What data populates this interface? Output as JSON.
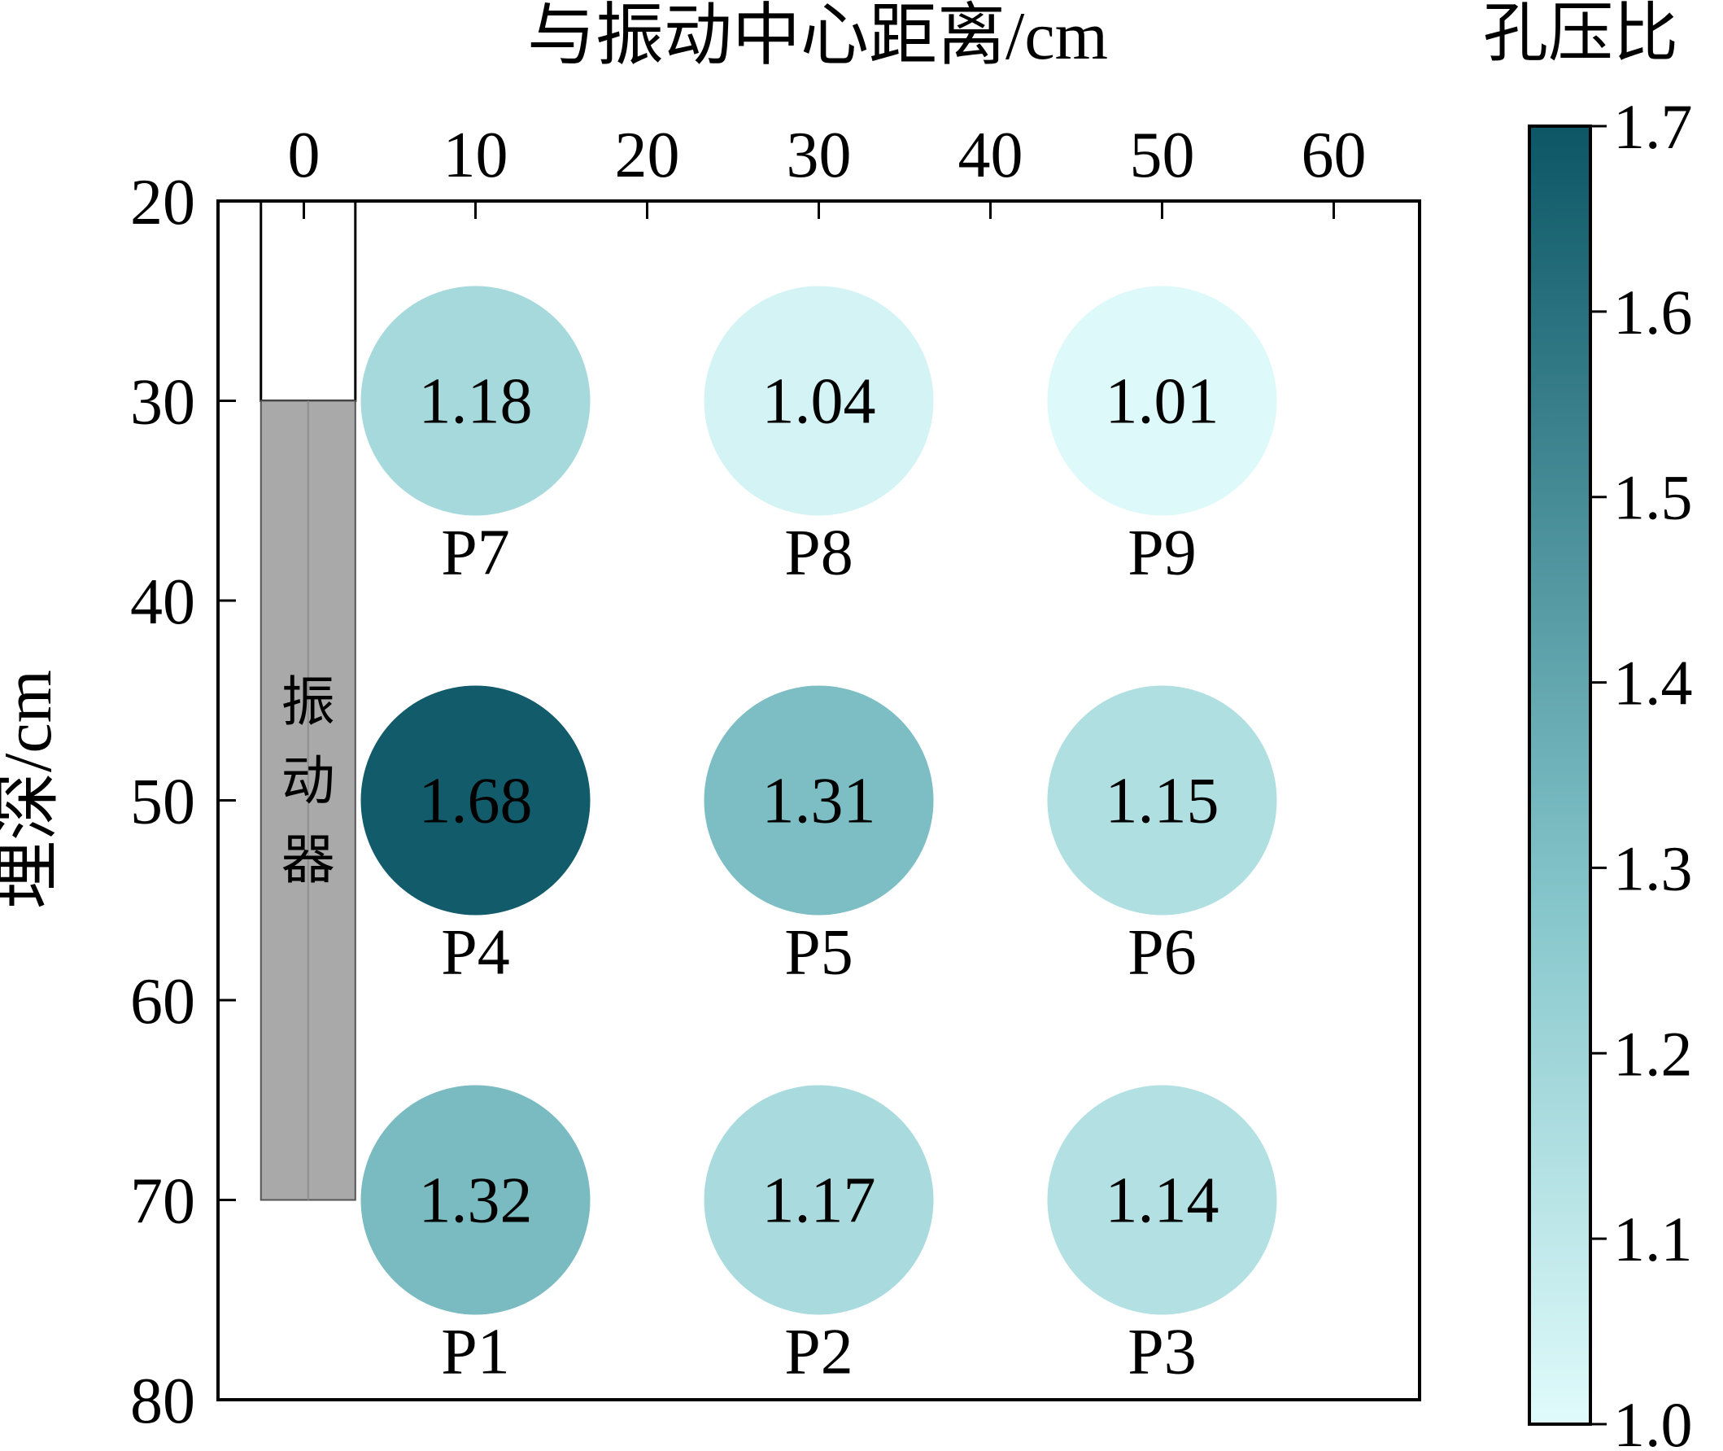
{
  "chart_data": {
    "type": "scatter",
    "title": "",
    "xlabel": "与振动中心距离/cm",
    "ylabel": "埋深/cm",
    "xlim": [
      -5,
      65
    ],
    "ylim": [
      80,
      20
    ],
    "x_axis_position": "top",
    "y_axis_inverted": true,
    "xticks": [
      0,
      10,
      20,
      30,
      40,
      50,
      60
    ],
    "yticks": [
      20,
      30,
      40,
      50,
      60,
      70,
      80
    ],
    "grid": false,
    "points": [
      {
        "label": "P7",
        "x": 10,
        "y": 30,
        "value": 1.18,
        "value_text": "1.18"
      },
      {
        "label": "P8",
        "x": 30,
        "y": 30,
        "value": 1.04,
        "value_text": "1.04"
      },
      {
        "label": "P9",
        "x": 50,
        "y": 30,
        "value": 1.01,
        "value_text": "1.01"
      },
      {
        "label": "P4",
        "x": 10,
        "y": 50,
        "value": 1.68,
        "value_text": "1.68"
      },
      {
        "label": "P5",
        "x": 30,
        "y": 50,
        "value": 1.31,
        "value_text": "1.31"
      },
      {
        "label": "P6",
        "x": 50,
        "y": 50,
        "value": 1.15,
        "value_text": "1.15"
      },
      {
        "label": "P1",
        "x": 10,
        "y": 70,
        "value": 1.32,
        "value_text": "1.32"
      },
      {
        "label": "P2",
        "x": 30,
        "y": 70,
        "value": 1.17,
        "value_text": "1.17"
      },
      {
        "label": "P3",
        "x": 50,
        "y": 70,
        "value": 1.14,
        "value_text": "1.14"
      }
    ],
    "vibrator": {
      "label_chars": [
        "振",
        "动",
        "器"
      ],
      "x_range": [
        -2.5,
        3
      ],
      "open_segment_y": [
        20,
        30
      ],
      "filled_segment_y": [
        30,
        70
      ],
      "fill_color": "#a9a9a9"
    },
    "colorbar": {
      "title": "孔压比",
      "min": 1.0,
      "max": 1.7,
      "ticks": [
        "1.0",
        "1.1",
        "1.2",
        "1.3",
        "1.4",
        "1.5",
        "1.6",
        "1.7"
      ],
      "color_low": "#e0fbfb",
      "color_mid": "#85c6cb",
      "color_high": "#0c5666"
    }
  }
}
